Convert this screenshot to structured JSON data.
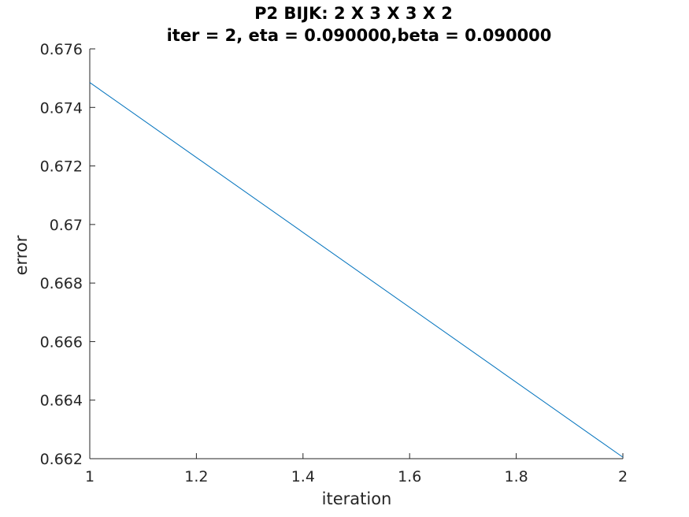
{
  "chart_data": {
    "type": "line",
    "title": [
      "P2 BIJK: 2 X 3 X 3 X 2",
      "iter = 2, eta = 0.090000,beta = 0.090000"
    ],
    "xlabel": "iteration",
    "ylabel": "error",
    "xlim": [
      1,
      2
    ],
    "ylim": [
      0.662,
      0.676
    ],
    "xticks": [
      1,
      1.2,
      1.4,
      1.6,
      1.8,
      2
    ],
    "xtick_labels": [
      "1",
      "1.2",
      "1.4",
      "1.6",
      "1.8",
      "2"
    ],
    "yticks": [
      0.662,
      0.664,
      0.666,
      0.668,
      0.67,
      0.672,
      0.674,
      0.676
    ],
    "ytick_labels": [
      "0.662",
      "0.664",
      "0.666",
      "0.668",
      "0.67",
      "0.672",
      "0.674",
      "0.676"
    ],
    "grid": false,
    "series": [
      {
        "x": [
          1,
          2
        ],
        "y": [
          0.67485,
          0.66205
        ],
        "color": "#0072bd"
      }
    ]
  }
}
